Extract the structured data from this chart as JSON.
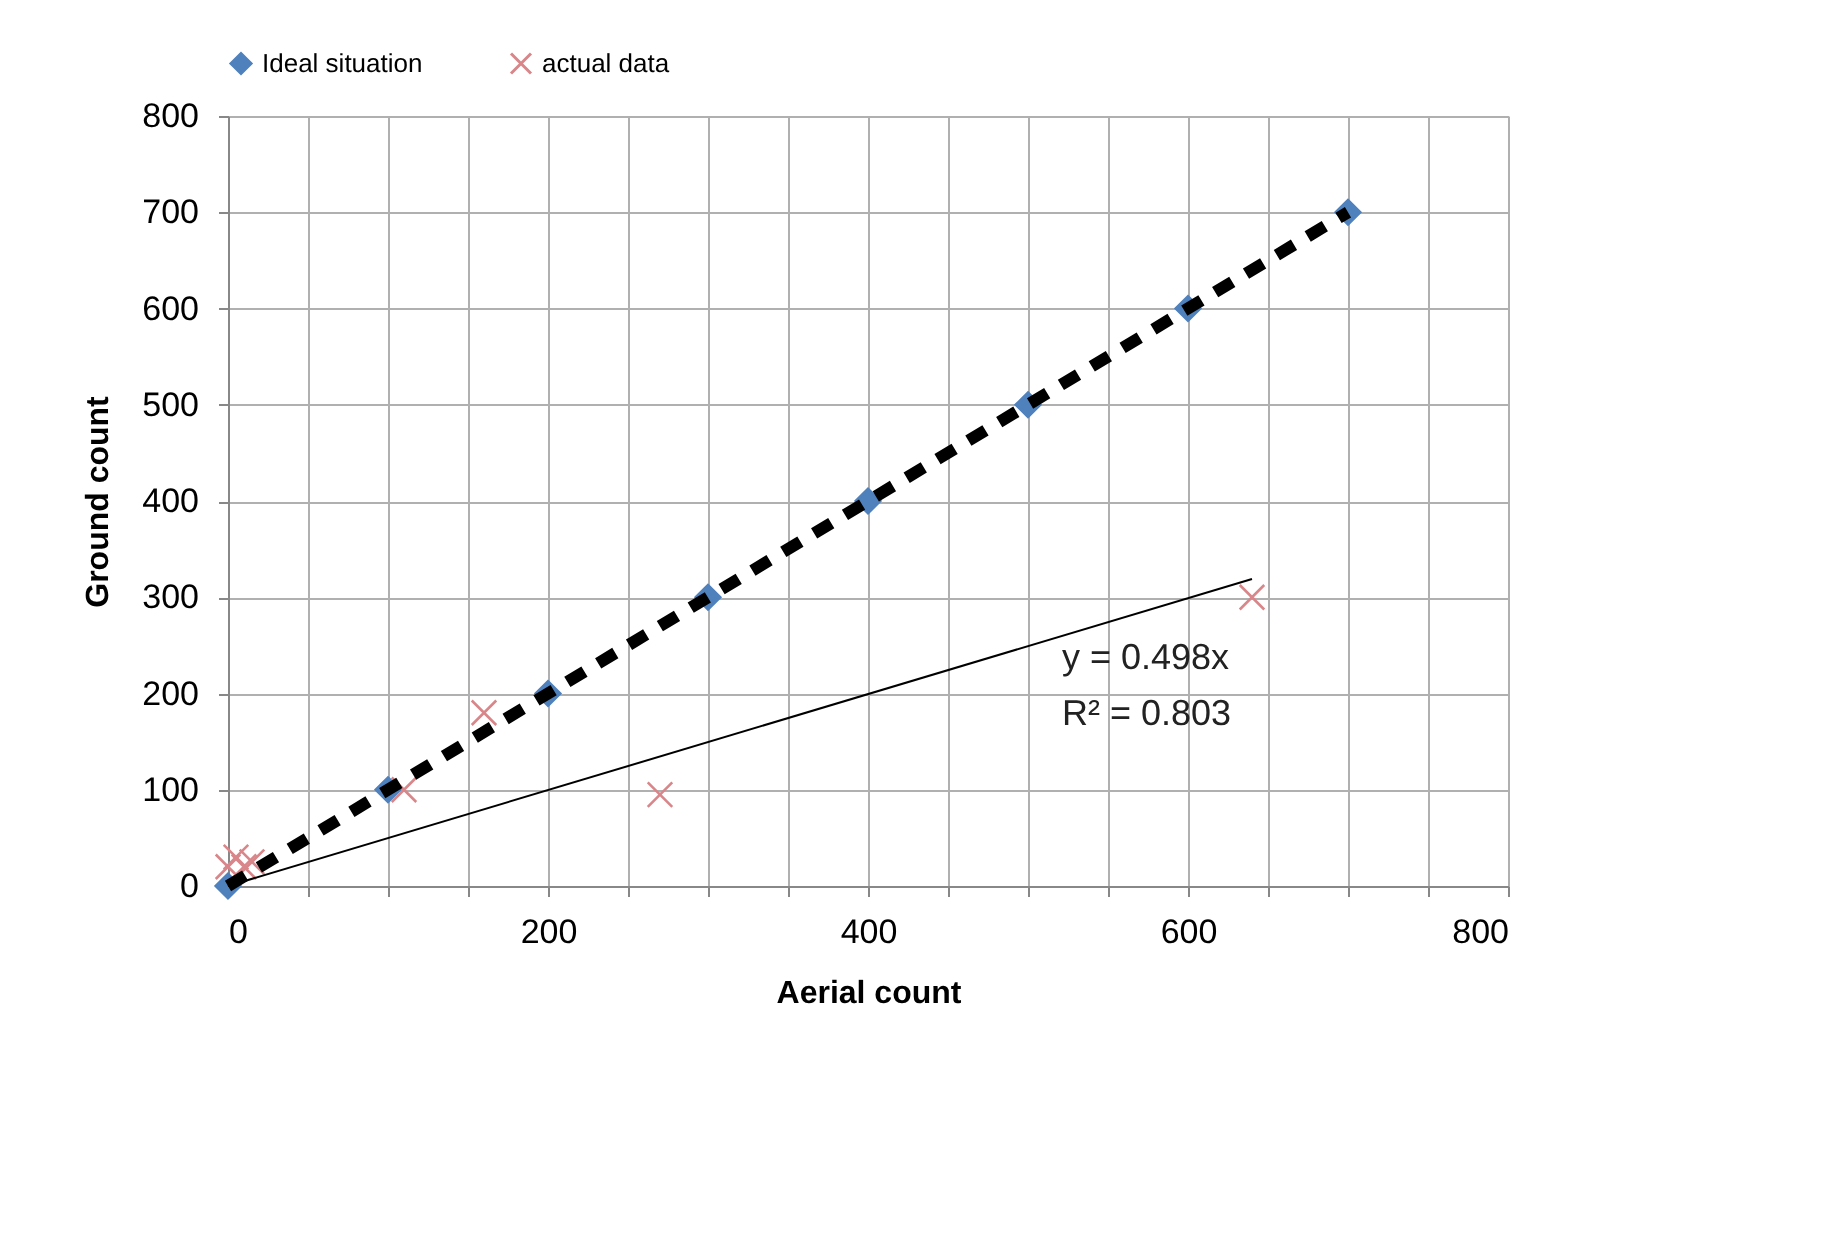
{
  "chart_data": {
    "type": "scatter",
    "xlabel": "Aerial count",
    "ylabel": "Ground count",
    "xlim": [
      0,
      800
    ],
    "ylim": [
      0,
      800
    ],
    "xticks": [
      0,
      {
        "value": 50,
        "label": null
      },
      {
        "value": 100,
        "label": null
      },
      {
        "value": 150,
        "label": null
      },
      200,
      {
        "value": 250,
        "label": null
      },
      {
        "value": 300,
        "label": null
      },
      {
        "value": 350,
        "label": null
      },
      400,
      {
        "value": 450,
        "label": null
      },
      {
        "value": 500,
        "label": null
      },
      {
        "value": 550,
        "label": null
      },
      600,
      {
        "value": 650,
        "label": null
      },
      {
        "value": 700,
        "label": null
      },
      {
        "value": 750,
        "label": null
      },
      800
    ],
    "yticks": [
      0,
      100,
      200,
      300,
      400,
      500,
      600,
      700,
      800
    ],
    "grid": true,
    "legend": "top",
    "series": [
      {
        "name": "Ideal situation",
        "marker": "diamond",
        "color": "#4f81bd",
        "x": [
          0,
          100,
          200,
          300,
          400,
          500,
          600,
          700
        ],
        "values": [
          0,
          100,
          200,
          300,
          400,
          500,
          600,
          700
        ]
      },
      {
        "type": "line",
        "line_style": "dashed",
        "color": "#000000",
        "x": [
          0,
          700
        ],
        "values": [
          0,
          700
        ]
      },
      {
        "name": "actual data",
        "marker": "cross",
        "color": "#d9868a",
        "x": [
          0,
          5,
          10,
          15,
          110,
          160,
          270,
          640
        ],
        "values": [
          20,
          30,
          20,
          25,
          100,
          180,
          95,
          300
        ]
      },
      {
        "type": "line",
        "line_style": "solid",
        "color": "#000000",
        "x": [
          0,
          640
        ],
        "values": [
          0,
          319
        ]
      }
    ],
    "annotations": [
      "y = 0.498x",
      "R² = 0.803"
    ]
  }
}
